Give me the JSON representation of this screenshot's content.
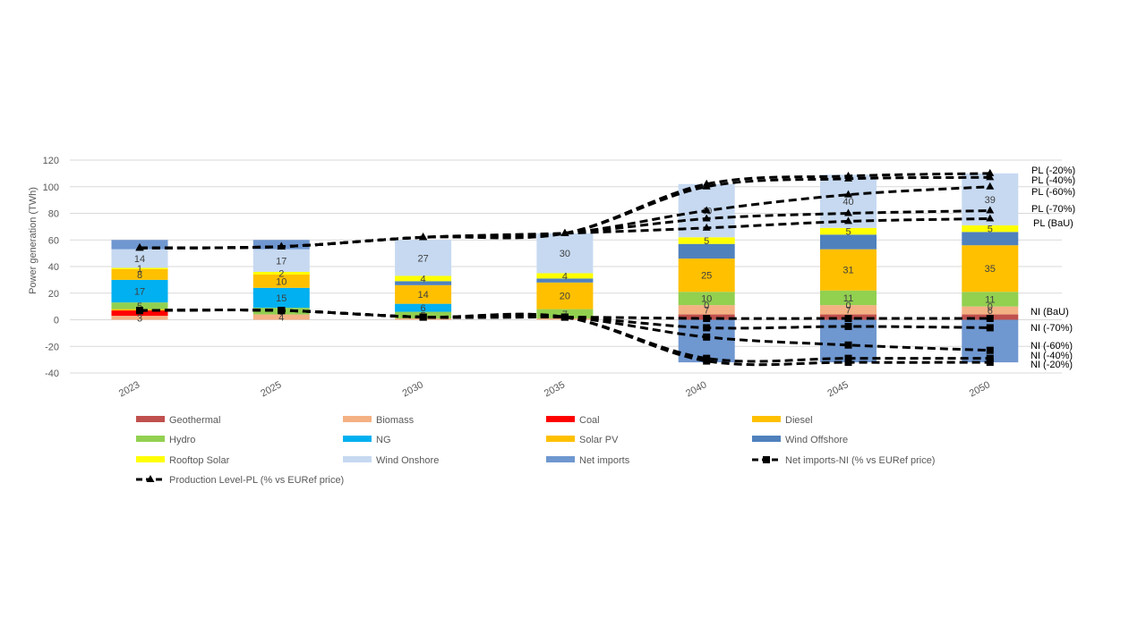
{
  "chart_data": {
    "type": "bar",
    "stacked": true,
    "title": "",
    "xlabel": "",
    "ylabel": "Power generation (TWh)",
    "ylim": [
      -40,
      120
    ],
    "yticks": [
      -40,
      -20,
      0,
      20,
      40,
      60,
      80,
      100,
      120
    ],
    "grid": true,
    "legend_position": "bottom",
    "categories": [
      "2023",
      "2025",
      "2030",
      "2035",
      "2040",
      "2045",
      "2050"
    ],
    "series": [
      {
        "name": "Geothermal",
        "color": "#c0504d",
        "values": [
          0,
          0,
          0,
          0,
          4,
          4,
          4
        ],
        "labels": [
          null,
          null,
          null,
          null,
          null,
          null,
          null
        ]
      },
      {
        "name": "Biomass",
        "color": "#f4b183",
        "values": [
          3,
          4,
          1,
          1,
          7,
          7,
          6
        ],
        "labels": [
          "3",
          "4",
          null,
          null,
          "7",
          "7",
          "6"
        ]
      },
      {
        "name": "Coal",
        "color": "#ff0000",
        "values": [
          4,
          0,
          0,
          0,
          0,
          0,
          0
        ],
        "labels": [
          null,
          null,
          null,
          null,
          null,
          null,
          null
        ]
      },
      {
        "name": "Diesel",
        "color": "#ffc000",
        "values": [
          1,
          0,
          0,
          0,
          0,
          0,
          0
        ],
        "labels": [
          null,
          null,
          null,
          null,
          null,
          null,
          null
        ]
      },
      {
        "name": "Hydro",
        "color": "#92d050",
        "values": [
          5,
          5,
          5,
          7,
          10,
          11,
          11
        ],
        "labels": [
          "5",
          "5",
          "5",
          "7",
          "10",
          "11",
          "11"
        ]
      },
      {
        "name": "NG",
        "color": "#00b0f0",
        "values": [
          17,
          15,
          6,
          0,
          0,
          0,
          0
        ],
        "labels": [
          "17",
          "15",
          "6",
          null,
          null,
          null,
          null
        ]
      },
      {
        "name": "Solar PV",
        "color": "#ffc000",
        "values": [
          8,
          10,
          14,
          20,
          25,
          31,
          35
        ],
        "labels": [
          "8",
          "10",
          "14",
          "20",
          "25",
          "31",
          "35"
        ]
      },
      {
        "name": "Wind Offshore",
        "color": "#4f81bd",
        "values": [
          0,
          0,
          3,
          3,
          11,
          11,
          10
        ],
        "labels": [
          null,
          null,
          null,
          null,
          null,
          null,
          null
        ]
      },
      {
        "name": "Rooftop Solar",
        "color": "#ffff00",
        "values": [
          1,
          2,
          4,
          4,
          5,
          5,
          5
        ],
        "labels": [
          "1",
          "2",
          "4",
          "4",
          "5",
          "5",
          "5"
        ]
      },
      {
        "name": "Wind Onshore",
        "color": "#c6d9f1",
        "values": [
          14,
          17,
          27,
          30,
          40,
          40,
          39
        ],
        "labels": [
          "14",
          "17",
          "27",
          "30",
          "40",
          "40",
          "39"
        ]
      },
      {
        "name": "Net imports",
        "color": "#6f97d0",
        "values": [
          7,
          7,
          0,
          0,
          -32,
          -32,
          -32
        ],
        "labels": [
          null,
          null,
          null,
          null,
          null,
          null,
          null
        ]
      }
    ],
    "zero_labels": [
      {
        "category": "2040",
        "stack_value": 11,
        "text": "0"
      },
      {
        "category": "2045",
        "stack_value": 11,
        "text": "0"
      },
      {
        "category": "2050",
        "stack_value": 10,
        "text": "0"
      }
    ],
    "pl_lines": [
      {
        "label": "PL (-20%)",
        "values": [
          54,
          55,
          62,
          65,
          102,
          108,
          110
        ]
      },
      {
        "label": "PL (-40%)",
        "values": [
          54,
          55,
          62,
          65,
          100,
          106,
          107
        ]
      },
      {
        "label": "PL (-60%)",
        "values": [
          54,
          55,
          62,
          65,
          82,
          94,
          100
        ]
      },
      {
        "label": "PL (-70%)",
        "values": [
          54,
          55,
          62,
          65,
          76,
          80,
          82
        ]
      },
      {
        "label": "PL (BaU)",
        "values": [
          54,
          55,
          62,
          65,
          69,
          74,
          76
        ]
      }
    ],
    "ni_lines": [
      {
        "label": "NI (BaU)",
        "values": [
          7,
          7,
          2,
          2,
          1,
          1,
          1
        ]
      },
      {
        "label": "NI (-70%)",
        "values": [
          7,
          7,
          2,
          2,
          -6,
          -5,
          -6
        ]
      },
      {
        "label": "NI (-60%)",
        "values": [
          7,
          7,
          2,
          2,
          -13,
          -19,
          -23
        ]
      },
      {
        "label": "NI (-40%)",
        "values": [
          7,
          7,
          2,
          2,
          -29,
          -29,
          -29
        ]
      },
      {
        "label": "NI (-20%)",
        "values": [
          7,
          7,
          2,
          2,
          -31,
          -32,
          -32
        ]
      }
    ],
    "legend": [
      {
        "label": "Geothermal",
        "kind": "swatch",
        "color": "#c0504d"
      },
      {
        "label": "Biomass",
        "kind": "swatch",
        "color": "#f4b183"
      },
      {
        "label": "Coal",
        "kind": "swatch",
        "color": "#ff0000"
      },
      {
        "label": "Diesel",
        "kind": "swatch",
        "color": "#ffc000"
      },
      {
        "label": "Hydro",
        "kind": "swatch",
        "color": "#92d050"
      },
      {
        "label": "NG",
        "kind": "swatch",
        "color": "#00b0f0"
      },
      {
        "label": "Solar PV",
        "kind": "swatch",
        "color": "#ffc000"
      },
      {
        "label": "Wind Offshore",
        "kind": "swatch",
        "color": "#4f81bd"
      },
      {
        "label": "Rooftop Solar",
        "kind": "swatch",
        "color": "#ffff00"
      },
      {
        "label": "Wind Onshore",
        "kind": "swatch",
        "color": "#c6d9f1"
      },
      {
        "label": "Net imports",
        "kind": "swatch",
        "color": "#6f97d0"
      },
      {
        "label": "Net imports-NI (% vs EURef price)",
        "kind": "line-square"
      },
      {
        "label": "Production Level-PL (% vs EURef price)",
        "kind": "line-triangle"
      }
    ]
  }
}
